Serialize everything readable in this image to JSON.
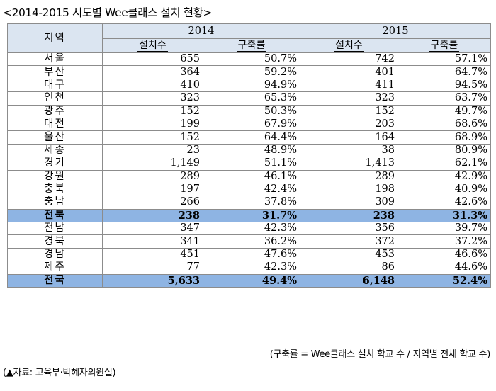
{
  "title": "<2014-2015 시도별 Wee클래스 설치 현황>",
  "table": {
    "region_header": "지역",
    "years": [
      "2014",
      "2015"
    ],
    "sub_headers": [
      "설치수",
      "구축률",
      "설치수",
      "구축률"
    ],
    "rows": [
      {
        "region": "서울",
        "v": [
          "655",
          "50.7%",
          "742",
          "57.1%"
        ]
      },
      {
        "region": "부산",
        "v": [
          "364",
          "59.2%",
          "401",
          "64.7%"
        ]
      },
      {
        "region": "대구",
        "v": [
          "410",
          "94.9%",
          "411",
          "94.5%"
        ]
      },
      {
        "region": "인천",
        "v": [
          "323",
          "65.3%",
          "323",
          "63.7%"
        ]
      },
      {
        "region": "광주",
        "v": [
          "152",
          "50.3%",
          "152",
          "49.7%"
        ]
      },
      {
        "region": "대전",
        "v": [
          "199",
          "67.9%",
          "203",
          "68.6%"
        ]
      },
      {
        "region": "울산",
        "v": [
          "152",
          "64.4%",
          "164",
          "68.9%"
        ]
      },
      {
        "region": "세종",
        "v": [
          "23",
          "48.9%",
          "38",
          "80.9%"
        ]
      },
      {
        "region": "경기",
        "v": [
          "1,149",
          "51.1%",
          "1,413",
          "62.1%"
        ]
      },
      {
        "region": "강원",
        "v": [
          "289",
          "46.1%",
          "289",
          "42.9%"
        ]
      },
      {
        "region": "충북",
        "v": [
          "197",
          "42.4%",
          "198",
          "40.9%"
        ]
      },
      {
        "region": "충남",
        "v": [
          "266",
          "37.8%",
          "309",
          "42.6%"
        ]
      },
      {
        "region": "전북",
        "v": [
          "238",
          "31.7%",
          "238",
          "31.3%"
        ],
        "highlight": true
      },
      {
        "region": "전남",
        "v": [
          "347",
          "42.3%",
          "356",
          "39.7%"
        ]
      },
      {
        "region": "경북",
        "v": [
          "341",
          "36.2%",
          "372",
          "37.2%"
        ]
      },
      {
        "region": "경남",
        "v": [
          "451",
          "47.6%",
          "453",
          "46.6%"
        ]
      },
      {
        "region": "제주",
        "v": [
          "77",
          "42.3%",
          "86",
          "44.6%"
        ]
      },
      {
        "region": "전국",
        "v": [
          "5,633",
          "49.4%",
          "6,148",
          "52.4%"
        ],
        "highlight": true
      }
    ]
  },
  "note": "(구축률 = Wee클래스 설치 학교 수 / 지역별 전체 학교 수)",
  "source": "(▲자료: 교육부·박혜자의원실)",
  "colors": {
    "header_bg": "#dbe5f1",
    "highlight_bg": "#8eb4e3",
    "border": "#8c8c8c"
  }
}
